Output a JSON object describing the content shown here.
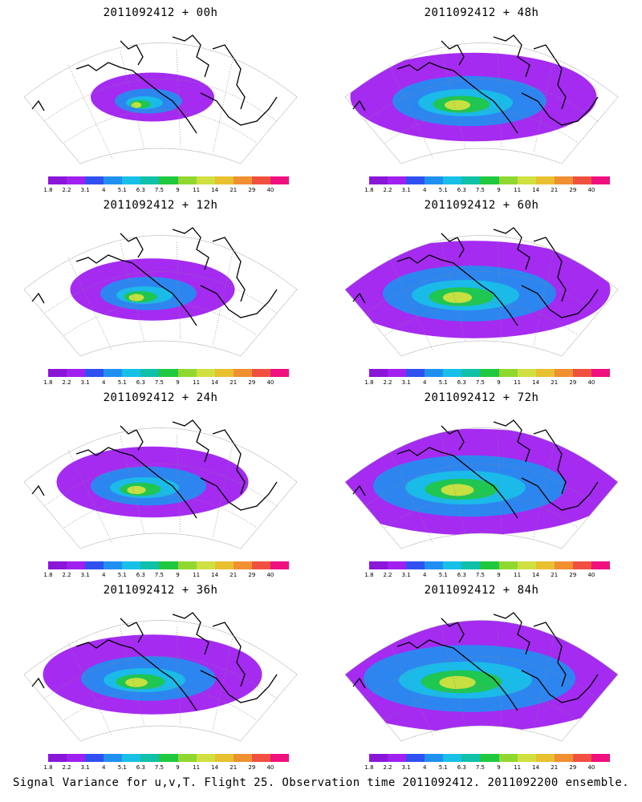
{
  "panels": [
    {
      "title": "2011092412 + 00h",
      "intensity": 0.1
    },
    {
      "title": "2011092412 + 48h",
      "intensity": 0.55
    },
    {
      "title": "2011092412 + 12h",
      "intensity": 0.25
    },
    {
      "title": "2011092412 + 60h",
      "intensity": 0.65
    },
    {
      "title": "2011092412 + 24h",
      "intensity": 0.35
    },
    {
      "title": "2011092412 + 72h",
      "intensity": 0.75
    },
    {
      "title": "2011092412 + 36h",
      "intensity": 0.45
    },
    {
      "title": "2011092412 + 84h",
      "intensity": 0.85
    }
  ],
  "colorbar": {
    "labels": [
      "1.8",
      "2.2",
      "3.1",
      "4",
      "5.1",
      "6.3",
      "7.5",
      "9",
      "11",
      "14",
      "21",
      "29",
      "40"
    ],
    "colors": [
      "#8a16d8",
      "#a020f0",
      "#3050f0",
      "#2090f0",
      "#18c0e8",
      "#10c0a8",
      "#20c840",
      "#90d830",
      "#d0e040",
      "#e8c030",
      "#f09030",
      "#f05040",
      "#f01080"
    ]
  },
  "caption": "Signal Variance for u,v,T. Flight 25. Observation time 2011092412. 2011092200 ensemble."
}
